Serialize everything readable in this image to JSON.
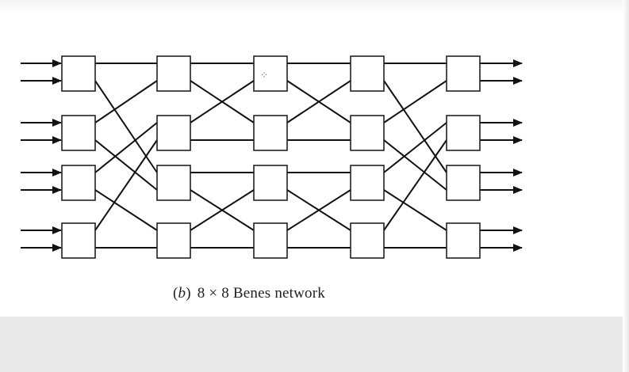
{
  "diagram": {
    "caption_label": "b",
    "caption_text": "8 × 8 Benes network",
    "inputs": 8,
    "outputs": 8,
    "stages": 5,
    "switches_per_stage": 4,
    "highlighted_switch_marker": "⁘",
    "colors": {
      "line": "#111111",
      "box_fill": "#ffffff",
      "box_stroke": "#222222",
      "background_bottom": "#e9e9e9"
    }
  }
}
